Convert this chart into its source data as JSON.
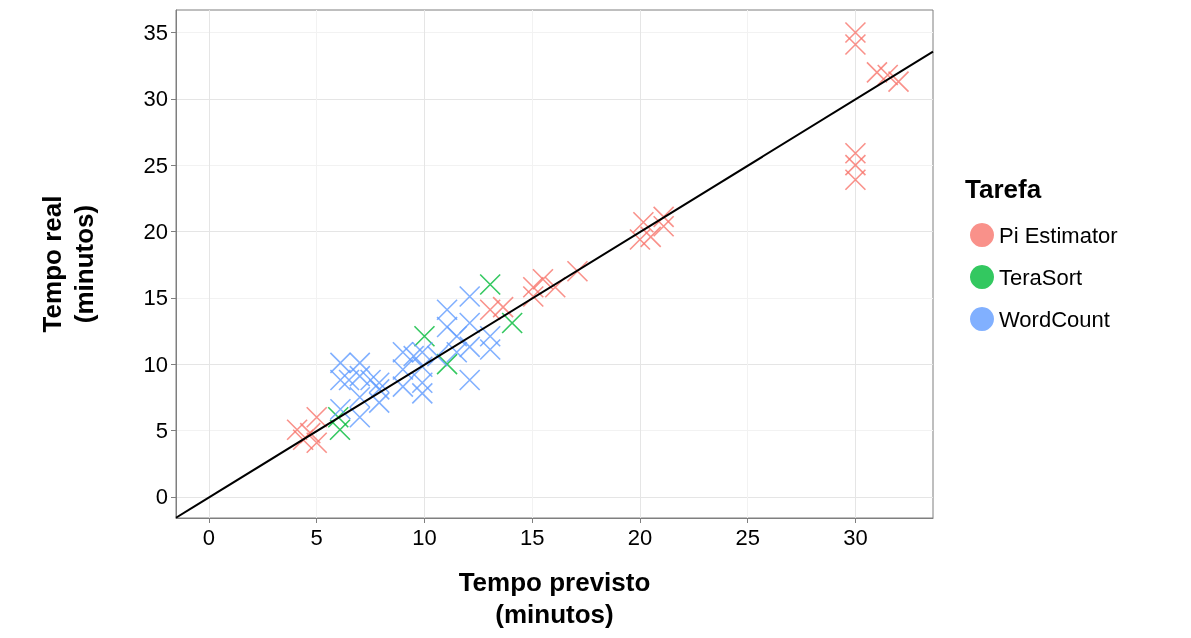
{
  "chart_data": {
    "type": "scatter",
    "xlabel": "Tempo previsto\n(minutos)",
    "ylabel": "Tempo real\n(minutos)",
    "legend_title": "Tarefa",
    "xlim": [
      -1.53,
      33.6
    ],
    "ylim": [
      -1.6,
      36.7
    ],
    "xticks": [
      0,
      5,
      10,
      15,
      20,
      25,
      30
    ],
    "yticks": [
      0,
      5,
      10,
      15,
      20,
      25,
      30,
      35
    ],
    "grid": true,
    "legend": "right",
    "marker": "cross",
    "series": [
      {
        "name": "Pi Estimator",
        "color": "#f8766d",
        "x": [
          4.09,
          5.0,
          5.0,
          4.37,
          4.7,
          13.05,
          13.65,
          20.16,
          21.1,
          20.0,
          21.1,
          20.5,
          15.05,
          15.5,
          15.05,
          17.1,
          16.07,
          30.0,
          30.0,
          31.0,
          31.5,
          32.0,
          30.0,
          30.0,
          30.0
        ],
        "values": [
          5.05,
          6.0,
          4.07,
          4.3,
          4.8,
          14.1,
          14.3,
          20.7,
          21.1,
          19.4,
          20.4,
          19.6,
          15.8,
          16.4,
          15.1,
          17.0,
          15.8,
          35.0,
          34.1,
          32.0,
          31.8,
          31.3,
          25.9,
          25.0,
          23.9
        ]
      },
      {
        "name": "TeraSort",
        "color": "#00ba38",
        "x": [
          13.05,
          14.07,
          10.0,
          11.05,
          6.08,
          6.0
        ],
        "values": [
          16.0,
          13.1,
          12.1,
          10.0,
          5.05,
          6.0
        ]
      },
      {
        "name": "WordCount",
        "color": "#619cff",
        "x": [
          6.1,
          7.0,
          6.1,
          7.0,
          7.5,
          7.9,
          6.1,
          7.0,
          7.9,
          7.0,
          9.0,
          9.0,
          9.0,
          9.9,
          9.9,
          9.9,
          9.9,
          11.05,
          11.05,
          11.5,
          12.1,
          12.1,
          13.05,
          13.05,
          12.1,
          12.1,
          11.5,
          10.6,
          9.5,
          7.9,
          6.5
        ],
        "values": [
          10.1,
          10.1,
          8.8,
          9.1,
          8.8,
          8.6,
          6.6,
          6.0,
          7.1,
          7.5,
          10.9,
          9.6,
          8.3,
          8.6,
          7.8,
          10.9,
          9.8,
          14.1,
          12.8,
          12.1,
          15.1,
          13.1,
          12.1,
          11.1,
          8.8,
          11.3,
          10.9,
          10.6,
          10.6,
          8.1,
          8.8
        ]
      },
      {
        "type": "line",
        "color": "#000000",
        "marker": "none",
        "x": [
          -1.53,
          33.6
        ],
        "values": [
          -1.58,
          33.56
        ]
      }
    ]
  }
}
